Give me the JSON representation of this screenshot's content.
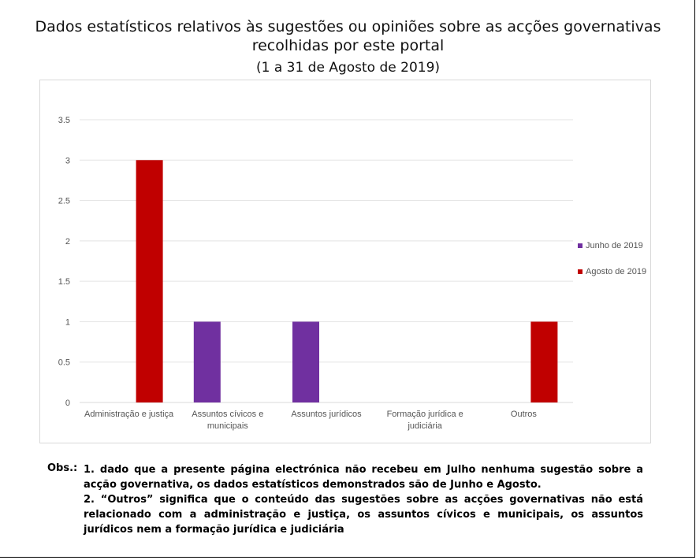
{
  "chart_data": {
    "type": "bar",
    "title": "Dados estatísticos relativos às sugestões ou opiniões sobre as acções governativas recolhidas por este portal",
    "subtitle": "(1 a 31 de Agosto de 2019)",
    "categories": [
      [
        "Administração e justiça"
      ],
      [
        "Assuntos cívicos e",
        "municipais"
      ],
      [
        "Assuntos jurídicos"
      ],
      [
        "Formação jurídica e",
        "judiciária"
      ],
      [
        "Outros"
      ]
    ],
    "series": [
      {
        "name": "Junho de 2019",
        "color": "#7030a0",
        "values": [
          0,
          1,
          1,
          0,
          0
        ]
      },
      {
        "name": "Agosto de 2019",
        "color": "#c00000",
        "values": [
          3,
          0,
          0,
          0,
          1
        ]
      }
    ],
    "ylim": [
      0,
      3.5
    ],
    "yticks": [
      "0",
      "0.5",
      "1",
      "1.5",
      "2",
      "2.5",
      "3",
      "3.5"
    ],
    "grid": true,
    "legend_position": "right"
  },
  "notes": {
    "label": "Obs.:",
    "items": [
      "1. dado que a presente página electrónica não recebeu em Julho nenhuma sugestão sobre a acção governativa, os dados estatísticos demonstrados são de Junho e Agosto.",
      "2. “Outros” significa que o conteúdo das sugestões sobre as acções governativas não está relacionado com a administração e justiça, os assuntos cívicos e municipais, os assuntos jurídicos nem a formação jurídica e judiciária"
    ]
  }
}
